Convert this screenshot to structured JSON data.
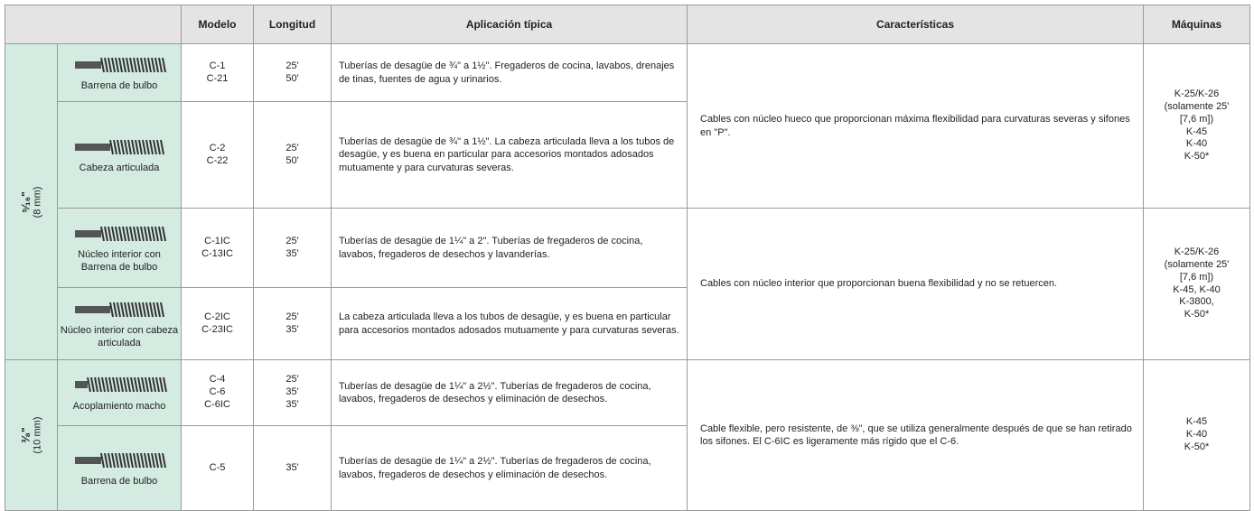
{
  "header": {
    "columns": [
      "Modelo",
      "Longitud",
      "Aplicación típica",
      "Características",
      "Máquinas"
    ]
  },
  "groups": [
    {
      "size": "⁵⁄₁₆\"",
      "size_mm": "(8 mm)",
      "blocks": [
        {
          "features": "Cables con núcleo hueco que proporcionan máxima flexibilidad para curvaturas severas y sifones en \"P\".",
          "machines": [
            "K-25/K-26",
            "(solamente 25'",
            "[7,6 m])",
            "K-45",
            "K-40",
            "K-50*"
          ],
          "rows": [
            {
              "image_label": "Barrena de bulbo",
              "models": [
                "C-1",
                "C-21"
              ],
              "lengths": [
                "25'",
                "50'"
              ],
              "application": "Tuberías de desagüe de ¾\" a 1½\". Fregaderos de cocina, lavabos, drenajes de tinas, fuentes de agua y urinarios."
            },
            {
              "image_label": "Cabeza articulada",
              "models": [
                "C-2",
                "C-22"
              ],
              "lengths": [
                "25'",
                "50'"
              ],
              "application": "Tuberías de desagüe de ¾\" a 1½\". La cabeza articulada lleva a los tubos de desagüe, y es buena en particular para accesorios montados adosados mutuamente y para curvaturas severas."
            }
          ]
        },
        {
          "features": "Cables con núcleo interior que proporcionan buena flexibilidad y no se retuercen.",
          "machines": [
            "K-25/K-26",
            "(solamente 25'",
            "[7,6 m])",
            "K-45, K-40",
            "K-3800,",
            "K-50*"
          ],
          "rows": [
            {
              "image_label": "Núcleo interior con Barrena de bulbo",
              "models": [
                "C-1IC",
                "C-13IC"
              ],
              "lengths": [
                "25'",
                "35'"
              ],
              "application": "Tuberías de desagüe de 1¼\" a 2\". Tuberías de fregaderos de cocina, lavabos, fregaderos de desechos y lavanderías."
            },
            {
              "image_label": "Núcleo interior con cabeza articulada",
              "models": [
                "C-2IC",
                "C-23IC"
              ],
              "lengths": [
                "25'",
                "35'"
              ],
              "application": "La cabeza articulada lleva a los tubos de desagüe, y es buena en particular para accesorios montados adosados mutuamente y para curvaturas severas."
            }
          ]
        }
      ]
    },
    {
      "size": "³⁄₈\"",
      "size_mm": "(10 mm)",
      "blocks": [
        {
          "features": "Cable flexible, pero resistente, de ⅜\", que se utiliza generalmente después de que se han retirado los sifones. El C-6IC es ligeramente más rígido que el C-6.",
          "machines": [
            "K-45",
            "K-40",
            "K-50*"
          ],
          "rows": [
            {
              "image_label": "Acoplamiento macho",
              "models": [
                "C-4",
                "C-6",
                "C-6IC"
              ],
              "lengths": [
                "25'",
                "35'",
                "35'"
              ],
              "application": "Tuberías de desagüe de 1¼\" a 2½\". Tuberías de fregaderos de cocina, lavabos, fregaderos de desechos y eliminación de desechos."
            },
            {
              "image_label": "Barrena de bulbo",
              "models": [
                "C-5"
              ],
              "lengths": [
                "35'"
              ],
              "application": "Tuberías de desagüe de 1¼\" a 2½\". Tuberías de fregaderos de cocina, lavabos, fregaderos de desechos y eliminación de desechos."
            }
          ]
        }
      ]
    }
  ]
}
